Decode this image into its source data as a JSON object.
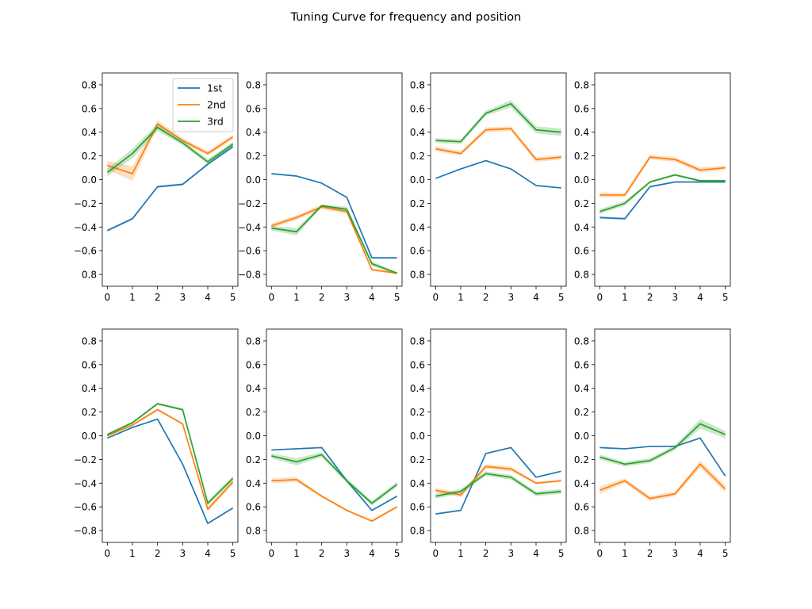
{
  "figure": {
    "title": "Tuning Curve for frequency and position"
  },
  "colors": {
    "1st": "#1f77b4",
    "2nd": "#ff7f0e",
    "3rd": "#2ca02c"
  },
  "chart_data": [
    {
      "type": "line",
      "panel": "row1-col1",
      "x": [
        0,
        1,
        2,
        3,
        4,
        5
      ],
      "xticks": [
        "0",
        "1",
        "2",
        "3",
        "4",
        "5"
      ],
      "yticks": [
        "0.8",
        "0.6",
        "0.4",
        "0.2",
        "0.0",
        "−0.2",
        "−0.4",
        "−0.6",
        "0.8"
      ],
      "ylim": [
        -0.9,
        0.9
      ],
      "legend": {
        "location": "upper-right",
        "entries": [
          "1st",
          "2nd",
          "3rd"
        ]
      },
      "series": [
        {
          "name": "1st",
          "values": [
            -0.43,
            -0.33,
            -0.06,
            -0.04,
            0.13,
            0.28
          ],
          "band": [
            0.01,
            0.01,
            0.01,
            0.01,
            0.01,
            0.02
          ]
        },
        {
          "name": "2nd",
          "values": [
            0.12,
            0.05,
            0.47,
            0.33,
            0.22,
            0.36
          ],
          "band": [
            0.04,
            0.06,
            0.03,
            0.02,
            0.02,
            0.02
          ]
        },
        {
          "name": "3rd",
          "values": [
            0.06,
            0.22,
            0.44,
            0.31,
            0.15,
            0.3
          ],
          "band": [
            0.03,
            0.04,
            0.03,
            0.02,
            0.02,
            0.02
          ]
        }
      ]
    },
    {
      "type": "line",
      "panel": "row1-col2",
      "x": [
        0,
        1,
        2,
        3,
        4,
        5
      ],
      "xticks": [
        "0",
        "1",
        "2",
        "3",
        "4",
        "5"
      ],
      "yticks": [
        "0.8",
        "0.6",
        "0.4",
        "0.2",
        "0.0",
        "−0.2",
        "−0.4",
        "−0.6",
        "−0.8"
      ],
      "ylim": [
        -0.9,
        0.9
      ],
      "series": [
        {
          "name": "1st",
          "values": [
            0.05,
            0.03,
            -0.03,
            -0.15,
            -0.66,
            -0.66
          ],
          "band": [
            0.005,
            0.005,
            0.005,
            0.005,
            0.005,
            0.005
          ]
        },
        {
          "name": "2nd",
          "values": [
            -0.39,
            -0.32,
            -0.23,
            -0.27,
            -0.76,
            -0.79
          ],
          "band": [
            0.02,
            0.02,
            0.02,
            0.02,
            0.01,
            0.01
          ]
        },
        {
          "name": "3rd",
          "values": [
            -0.41,
            -0.44,
            -0.22,
            -0.25,
            -0.71,
            -0.79
          ],
          "band": [
            0.02,
            0.03,
            0.01,
            0.02,
            0.02,
            0.01
          ]
        }
      ]
    },
    {
      "type": "line",
      "panel": "row1-col3",
      "x": [
        0,
        1,
        2,
        3,
        4,
        5
      ],
      "xticks": [
        "0",
        "1",
        "2",
        "3",
        "4",
        "5"
      ],
      "yticks": [
        "0.8",
        "0.6",
        "0.4",
        "0.2",
        "0.0",
        "0.2",
        "0.4",
        "0.6",
        "0.8"
      ],
      "ylim": [
        -0.9,
        0.9
      ],
      "series": [
        {
          "name": "1st",
          "values": [
            0.01,
            0.09,
            0.16,
            0.09,
            -0.05,
            -0.07
          ],
          "band": [
            0.005,
            0.005,
            0.005,
            0.005,
            0.005,
            0.005
          ]
        },
        {
          "name": "2nd",
          "values": [
            0.26,
            0.22,
            0.42,
            0.43,
            0.17,
            0.19
          ],
          "band": [
            0.02,
            0.02,
            0.02,
            0.02,
            0.02,
            0.02
          ]
        },
        {
          "name": "3rd",
          "values": [
            0.33,
            0.32,
            0.56,
            0.64,
            0.42,
            0.4
          ],
          "band": [
            0.02,
            0.02,
            0.02,
            0.03,
            0.03,
            0.03
          ]
        }
      ]
    },
    {
      "type": "line",
      "panel": "row1-col4",
      "x": [
        0,
        1,
        2,
        3,
        4,
        5
      ],
      "xticks": [
        "0",
        "1",
        "2",
        "3",
        "4",
        "5"
      ],
      "yticks": [
        "0.8",
        "0.6",
        "0.4",
        "0.2",
        "0.0",
        "0.2",
        "0.4",
        "0.6",
        "0.8"
      ],
      "ylim": [
        -0.9,
        0.9
      ],
      "series": [
        {
          "name": "1st",
          "values": [
            -0.32,
            -0.33,
            -0.06,
            -0.02,
            -0.02,
            -0.02
          ],
          "band": [
            0.01,
            0.01,
            0.01,
            0.005,
            0.005,
            0.005
          ]
        },
        {
          "name": "2nd",
          "values": [
            -0.13,
            -0.13,
            0.19,
            0.17,
            0.08,
            0.1
          ],
          "band": [
            0.02,
            0.02,
            0.02,
            0.02,
            0.02,
            0.02
          ]
        },
        {
          "name": "3rd",
          "values": [
            -0.27,
            -0.2,
            -0.02,
            0.04,
            -0.01,
            -0.01
          ],
          "band": [
            0.02,
            0.02,
            0.01,
            0.01,
            0.01,
            0.01
          ]
        }
      ]
    },
    {
      "type": "line",
      "panel": "row2-col1",
      "x": [
        0,
        1,
        2,
        3,
        4,
        5
      ],
      "xticks": [
        "0",
        "1",
        "2",
        "3",
        "4",
        "5"
      ],
      "yticks": [
        "0.8",
        "0.6",
        "0.4",
        "0.2",
        "0.0",
        "−0.2",
        "−0.4",
        "−0.6",
        "−0.8"
      ],
      "ylim": [
        -0.9,
        0.9
      ],
      "series": [
        {
          "name": "1st",
          "values": [
            -0.02,
            0.07,
            0.14,
            -0.24,
            -0.74,
            -0.61
          ],
          "band": [
            0.005,
            0.005,
            0.005,
            0.005,
            0.005,
            0.005
          ]
        },
        {
          "name": "2nd",
          "values": [
            0,
            0.09,
            0.22,
            0.1,
            -0.62,
            -0.39
          ],
          "band": [
            0.01,
            0.01,
            0.01,
            0.01,
            0.02,
            0.02
          ]
        },
        {
          "name": "3rd",
          "values": [
            0.01,
            0.11,
            0.27,
            0.22,
            -0.57,
            -0.36
          ],
          "band": [
            0.01,
            0.01,
            0.01,
            0.01,
            0.02,
            0.02
          ]
        }
      ]
    },
    {
      "type": "line",
      "panel": "row2-col2",
      "x": [
        0,
        1,
        2,
        3,
        4,
        5
      ],
      "xticks": [
        "0",
        "1",
        "2",
        "3",
        "4",
        "5"
      ],
      "yticks": [
        "0.8",
        "0.6",
        "0.4",
        "0.2",
        "0.0",
        "0.2",
        "0.4",
        "0.6",
        "0.8"
      ],
      "ylim": [
        -0.9,
        0.9
      ],
      "series": [
        {
          "name": "1st",
          "values": [
            -0.12,
            -0.11,
            -0.1,
            -0.38,
            -0.63,
            -0.51
          ],
          "band": [
            0.005,
            0.005,
            0.005,
            0.005,
            0.005,
            0.005
          ]
        },
        {
          "name": "2nd",
          "values": [
            -0.38,
            -0.37,
            -0.51,
            -0.63,
            -0.72,
            -0.6
          ],
          "band": [
            0.02,
            0.02,
            0.01,
            0.01,
            0.01,
            0.01
          ]
        },
        {
          "name": "3rd",
          "values": [
            -0.17,
            -0.22,
            -0.16,
            -0.38,
            -0.57,
            -0.41
          ],
          "band": [
            0.02,
            0.03,
            0.02,
            0.02,
            0.02,
            0.02
          ]
        }
      ]
    },
    {
      "type": "line",
      "panel": "row2-col3",
      "x": [
        0,
        1,
        2,
        3,
        4,
        5
      ],
      "xticks": [
        "0",
        "1",
        "2",
        "3",
        "4",
        "5"
      ],
      "yticks": [
        "0.8",
        "0.6",
        "0.4",
        "0.2",
        "0.0",
        "0.2",
        "0.4",
        "0.6",
        "0.8"
      ],
      "ylim": [
        -0.9,
        0.9
      ],
      "series": [
        {
          "name": "1st",
          "values": [
            -0.66,
            -0.63,
            -0.15,
            -0.1,
            -0.35,
            -0.3
          ],
          "band": [
            0.005,
            0.005,
            0.005,
            0.005,
            0.005,
            0.005
          ]
        },
        {
          "name": "2nd",
          "values": [
            -0.46,
            -0.5,
            -0.26,
            -0.28,
            -0.4,
            -0.38
          ],
          "band": [
            0.02,
            0.02,
            0.02,
            0.02,
            0.01,
            0.01
          ]
        },
        {
          "name": "3rd",
          "values": [
            -0.51,
            -0.47,
            -0.32,
            -0.35,
            -0.49,
            -0.47
          ],
          "band": [
            0.02,
            0.02,
            0.02,
            0.02,
            0.02,
            0.02
          ]
        }
      ]
    },
    {
      "type": "line",
      "panel": "row2-col4",
      "x": [
        0,
        1,
        2,
        3,
        4,
        5
      ],
      "xticks": [
        "0",
        "1",
        "2",
        "3",
        "4",
        "5"
      ],
      "yticks": [
        "0.8",
        "0.6",
        "0.4",
        "0.2",
        "0.0",
        "0.2",
        "0.4",
        "0.6",
        "0.8"
      ],
      "ylim": [
        -0.9,
        0.9
      ],
      "series": [
        {
          "name": "1st",
          "values": [
            -0.1,
            -0.11,
            -0.09,
            -0.09,
            -0.02,
            -0.34
          ],
          "band": [
            0.005,
            0.005,
            0.005,
            0.005,
            0.005,
            0.005
          ]
        },
        {
          "name": "2nd",
          "values": [
            -0.46,
            -0.38,
            -0.53,
            -0.49,
            -0.24,
            -0.45
          ],
          "band": [
            0.03,
            0.02,
            0.02,
            0.02,
            0.03,
            0.03
          ]
        },
        {
          "name": "3rd",
          "values": [
            -0.18,
            -0.24,
            -0.21,
            -0.1,
            0.1,
            0.01
          ],
          "band": [
            0.02,
            0.02,
            0.02,
            0.02,
            0.04,
            0.03
          ]
        }
      ]
    }
  ]
}
